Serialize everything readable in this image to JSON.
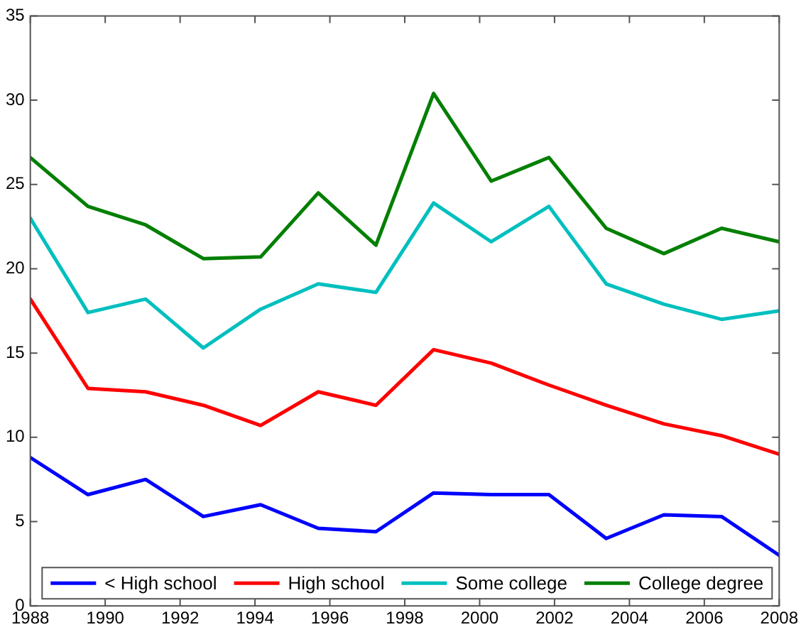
{
  "chart_data": {
    "type": "line",
    "x": [
      1988,
      1989.54,
      1991.08,
      1992.62,
      1994.15,
      1995.69,
      1997.23,
      1998.77,
      2000.31,
      2001.85,
      2003.38,
      2004.92,
      2006.46,
      2008
    ],
    "series": [
      {
        "name": "< High school",
        "color": "#0000ff",
        "values": [
          8.8,
          6.6,
          7.5,
          5.3,
          6.0,
          4.6,
          4.4,
          6.7,
          6.6,
          6.6,
          4.0,
          5.4,
          5.3,
          3.0
        ]
      },
      {
        "name": "High school",
        "color": "#ff0000",
        "values": [
          18.2,
          12.9,
          12.7,
          11.9,
          10.7,
          12.7,
          11.9,
          15.2,
          14.4,
          13.1,
          11.9,
          10.8,
          10.1,
          9.0
        ]
      },
      {
        "name": "Some college",
        "color": "#00bfbf",
        "values": [
          23.0,
          17.4,
          18.2,
          15.3,
          17.6,
          19.1,
          18.6,
          23.9,
          21.6,
          23.7,
          19.1,
          17.9,
          17.0,
          17.5
        ]
      },
      {
        "name": "College degree",
        "color": "#007f00",
        "values": [
          26.6,
          23.7,
          22.6,
          20.6,
          20.7,
          24.5,
          21.4,
          30.4,
          25.2,
          26.6,
          22.4,
          20.9,
          22.4,
          21.6
        ]
      }
    ],
    "xlim": [
      1988,
      2008
    ],
    "xticks": [
      1988,
      1990,
      1992,
      1994,
      1996,
      1998,
      2000,
      2002,
      2004,
      2006,
      2008
    ],
    "ylim": [
      0,
      35
    ],
    "yticks": [
      0,
      5,
      10,
      15,
      20,
      25,
      30,
      35
    ],
    "grid": false,
    "legend": "bottom right",
    "marker": "none",
    "line_style": "solid"
  }
}
